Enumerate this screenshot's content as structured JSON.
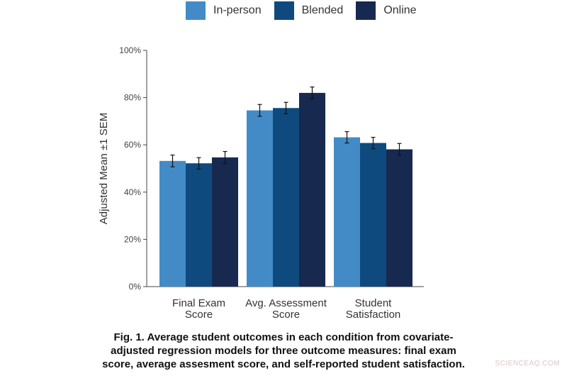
{
  "chart_data": {
    "type": "bar",
    "title": "",
    "ylabel": "Adjusted Mean ±1 SEM",
    "xlabel": "",
    "ylim": [
      0,
      100
    ],
    "yticks": [
      "0%",
      "20%",
      "40%",
      "60%",
      "80%",
      "100%"
    ],
    "ytick_values": [
      0,
      20,
      40,
      60,
      80,
      100
    ],
    "categories": [
      [
        "Final Exam",
        "Score"
      ],
      [
        "Avg. Assessment",
        "Score"
      ],
      [
        "Student",
        "Satisfaction"
      ]
    ],
    "series": [
      {
        "name": "In-person",
        "color": "#438bc6",
        "values": [
          53.2,
          74.6,
          63.2
        ],
        "sem": [
          2.5,
          2.5,
          2.4
        ]
      },
      {
        "name": "Blended",
        "color": "#0e4a7e",
        "values": [
          52.2,
          75.6,
          60.8
        ],
        "sem": [
          2.4,
          2.4,
          2.4
        ]
      },
      {
        "name": "Online",
        "color": "#17294f",
        "values": [
          54.7,
          82.0,
          58.1
        ],
        "sem": [
          2.5,
          2.5,
          2.5
        ]
      }
    ],
    "legend_position": "top",
    "grid": false
  },
  "caption": {
    "lines": [
      "Fig. 1. Average student outcomes in each condition from covariate-",
      "adjusted regression models for three outcome measures: final exam",
      "score, average assesment score, and self-reported student satisfaction."
    ]
  },
  "watermark": "SCIENCEAQ.COM"
}
